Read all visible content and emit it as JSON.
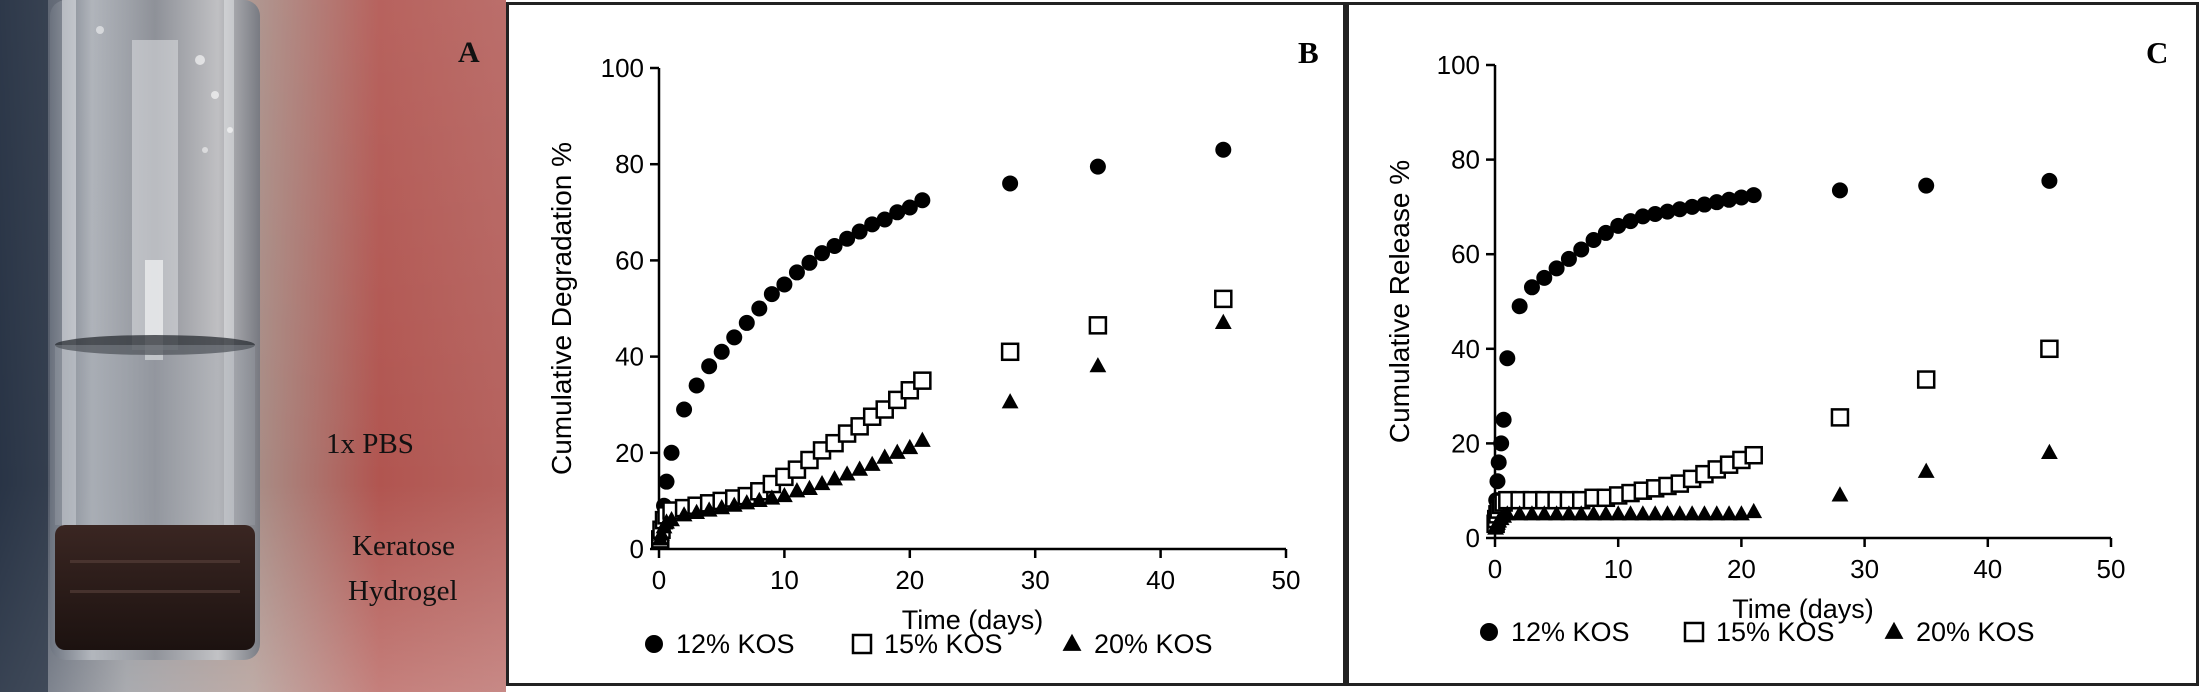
{
  "panel_a": {
    "letter": "A",
    "label_pbs": "1x PBS",
    "label_hydrogel_line1": "Keratose",
    "label_hydrogel_line2": "Hydrogel"
  },
  "chart_data": [
    {
      "panel": "B",
      "type": "scatter",
      "title": "",
      "xlabel": "Time (days)",
      "ylabel": "Cumulative Degradation %",
      "xlim": [
        0,
        50
      ],
      "ylim": [
        0,
        100
      ],
      "xticks": [
        0,
        10,
        20,
        30,
        40,
        50
      ],
      "yticks": [
        0,
        20,
        40,
        60,
        80,
        100
      ],
      "grid": false,
      "legend_position": "bottom",
      "series": [
        {
          "name": "12% KOS",
          "marker": "circle",
          "x": [
            0.1,
            0.2,
            0.4,
            0.6,
            1,
            2,
            3,
            4,
            5,
            6,
            7,
            8,
            9,
            10,
            11,
            12,
            13,
            14,
            15,
            16,
            17,
            18,
            19,
            20,
            21,
            28,
            35,
            45
          ],
          "y": [
            3,
            5,
            9,
            14,
            20,
            29,
            34,
            38,
            41,
            44,
            47,
            50,
            53,
            55,
            57.5,
            59.5,
            61.5,
            63,
            64.5,
            66,
            67.5,
            68.5,
            70,
            71,
            72.5,
            76,
            79.5,
            83
          ]
        },
        {
          "name": "15% KOS",
          "marker": "open-square",
          "x": [
            0.1,
            0.2,
            0.4,
            0.6,
            1,
            2,
            3,
            4,
            5,
            6,
            7,
            8,
            9,
            10,
            11,
            12,
            13,
            14,
            15,
            16,
            17,
            18,
            19,
            20,
            21,
            28,
            35,
            45
          ],
          "y": [
            2,
            4,
            6,
            7,
            8,
            8.5,
            9,
            9.5,
            10,
            10.5,
            11,
            12,
            13.5,
            15,
            16.5,
            18.5,
            20.5,
            22,
            24,
            25.5,
            27.5,
            29,
            31,
            33,
            35,
            41,
            46.5,
            52
          ]
        },
        {
          "name": "20% KOS",
          "marker": "filled-triangle",
          "x": [
            0.1,
            0.2,
            0.4,
            0.6,
            1,
            2,
            3,
            4,
            5,
            6,
            7,
            8,
            9,
            10,
            11,
            12,
            13,
            14,
            15,
            16,
            17,
            18,
            19,
            20,
            21,
            28,
            35,
            45
          ],
          "y": [
            2,
            3,
            4.5,
            5.5,
            6,
            7,
            7.5,
            8,
            8.5,
            9,
            9.5,
            10,
            10.5,
            11,
            12,
            12.5,
            13.5,
            14.5,
            15.5,
            16.5,
            17.5,
            19,
            20,
            21,
            22.5,
            30.5,
            38,
            47
          ]
        }
      ]
    },
    {
      "panel": "C",
      "type": "scatter",
      "title": "",
      "xlabel": "Time (days)",
      "ylabel": "Cumulative Release %",
      "xlim": [
        0,
        50
      ],
      "ylim": [
        0,
        100
      ],
      "xticks": [
        0,
        10,
        20,
        30,
        40,
        50
      ],
      "yticks": [
        0,
        20,
        40,
        60,
        80,
        100
      ],
      "grid": false,
      "legend_position": "bottom",
      "series": [
        {
          "name": "12% KOS",
          "marker": "circle",
          "x": [
            0.05,
            0.1,
            0.2,
            0.3,
            0.5,
            0.7,
            1,
            2,
            3,
            4,
            5,
            6,
            7,
            8,
            9,
            10,
            11,
            12,
            13,
            14,
            15,
            16,
            17,
            18,
            19,
            20,
            21,
            28,
            35,
            45
          ],
          "y": [
            5,
            8,
            12,
            16,
            20,
            25,
            38,
            49,
            53,
            55,
            57,
            59,
            61,
            63,
            64.5,
            66,
            67,
            68,
            68.5,
            69,
            69.5,
            70,
            70.5,
            71,
            71.5,
            72,
            72.5,
            73.5,
            74.5,
            75.5
          ]
        },
        {
          "name": "15% KOS",
          "marker": "open-square",
          "x": [
            0.05,
            0.1,
            0.2,
            0.3,
            0.5,
            0.7,
            1,
            2,
            3,
            4,
            5,
            6,
            7,
            8,
            9,
            10,
            11,
            12,
            13,
            14,
            15,
            16,
            17,
            18,
            19,
            20,
            21,
            28,
            35,
            45
          ],
          "y": [
            3,
            4,
            5,
            6,
            7,
            7.5,
            8,
            8,
            8,
            8,
            8,
            8,
            8,
            8.5,
            8.5,
            9,
            9.5,
            10,
            10.5,
            11,
            11.5,
            12.5,
            13.5,
            14.5,
            15.5,
            16.5,
            17.5,
            25.5,
            33.5,
            40
          ]
        },
        {
          "name": "20% KOS",
          "marker": "filled-triangle",
          "x": [
            0.05,
            0.1,
            0.2,
            0.3,
            0.5,
            0.7,
            1,
            2,
            3,
            4,
            5,
            6,
            7,
            8,
            9,
            10,
            11,
            12,
            13,
            14,
            15,
            16,
            17,
            18,
            19,
            20,
            21,
            28,
            35,
            45
          ],
          "y": [
            2,
            2.5,
            3,
            3.5,
            4,
            4.5,
            5,
            5,
            5,
            5,
            5,
            5,
            5,
            5,
            5,
            5,
            5,
            5,
            5,
            5,
            5,
            5,
            5,
            5,
            5,
            5,
            5.5,
            9,
            14,
            18
          ]
        }
      ]
    }
  ]
}
